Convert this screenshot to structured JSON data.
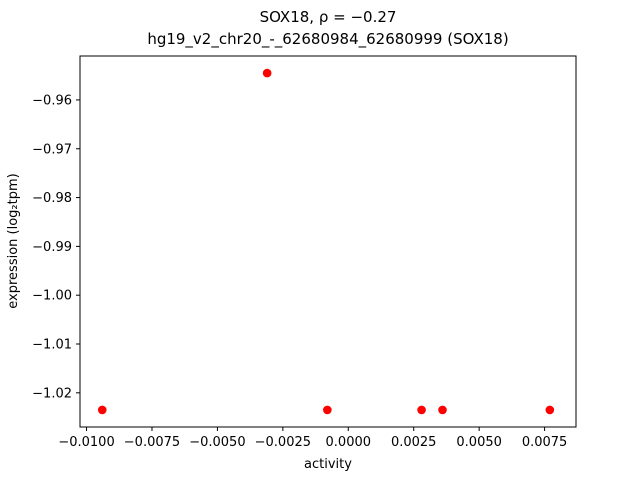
{
  "chart_data": {
    "type": "scatter",
    "title": "SOX18, ρ = −0.27",
    "subtitle": "hg19_v2_chr20_-_62680984_62680999 (SOX18)",
    "xlabel": "activity",
    "ylabel": "expression (log₂tpm)",
    "xlim": [
      -0.01025,
      0.0087
    ],
    "ylim": [
      -1.027,
      -0.951
    ],
    "grid": false,
    "legend": "none",
    "marker_color": "#ff0000",
    "xticks": {
      "values": [
        -0.01,
        -0.0075,
        -0.005,
        -0.0025,
        0.0,
        0.0025,
        0.005,
        0.0075
      ],
      "labels": [
        "−0.0100",
        "−0.0075",
        "−0.0050",
        "−0.0025",
        "0.0000",
        "0.0025",
        "0.0050",
        "0.0075"
      ]
    },
    "yticks": {
      "values": [
        -0.96,
        -0.97,
        -0.98,
        -0.99,
        -1.0,
        -1.01,
        -1.02
      ],
      "labels": [
        "−0.96",
        "−0.97",
        "−0.98",
        "−0.99",
        "−1.00",
        "−1.01",
        "−1.02"
      ]
    },
    "points": [
      {
        "x": -0.0094,
        "y": -1.0235
      },
      {
        "x": -0.0031,
        "y": -0.9545
      },
      {
        "x": -0.0008,
        "y": -1.0235
      },
      {
        "x": 0.0028,
        "y": -1.0235
      },
      {
        "x": 0.0036,
        "y": -1.0235
      },
      {
        "x": 0.0077,
        "y": -1.0235
      }
    ]
  }
}
